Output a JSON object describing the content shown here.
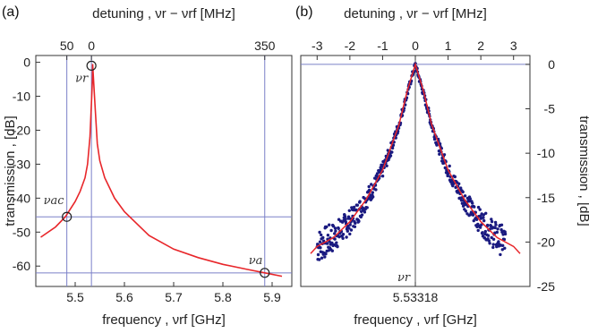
{
  "colors": {
    "fit": "#e8262a",
    "data": "#1a1a80",
    "guide": "#7b80c8",
    "axis": "#333333"
  },
  "panels": [
    {
      "tag": "(a)",
      "xlabel": "frequency , νrf [GHz]",
      "ylabel": "transmission , [dB]",
      "top_label": "detuning , νr − νrf [MHz]",
      "x_ticks": [
        "5.5",
        "5.6",
        "5.7",
        "5.8",
        "5.9"
      ],
      "y_ticks": [
        "0",
        "-10",
        "-20",
        "-30",
        "-40",
        "-50",
        "-60"
      ],
      "top_ticks": [
        "50",
        "0",
        "350"
      ],
      "markers": [
        "νr",
        "νac",
        "νa"
      ]
    },
    {
      "tag": "(b)",
      "xlabel": "frequency , νrf [GHz]",
      "ylabel": "transmission , [dB]",
      "top_label": "detuning , νr − νrf [MHz]",
      "x_ticks": [
        "5.53318"
      ],
      "y_ticks": [
        "0",
        "-5",
        "-10",
        "-15",
        "-20",
        "-25"
      ],
      "top_ticks": [
        "-3",
        "-2",
        "-1",
        "0",
        "1",
        "2",
        "3"
      ],
      "markers": [
        "νr"
      ]
    }
  ],
  "chart_data": [
    {
      "type": "line",
      "title": "",
      "xlabel": "frequency , νrf [GHz]",
      "ylabel": "transmission , [dB]",
      "xlim": [
        5.42,
        5.94
      ],
      "ylim": [
        -66,
        2
      ],
      "grid": false,
      "series": [
        {
          "x": [
            5.43,
            5.46,
            5.48,
            5.5,
            5.51,
            5.52,
            5.525,
            5.53,
            5.535,
            5.5355,
            5.54,
            5.545,
            5.55,
            5.56,
            5.58,
            5.6,
            5.65,
            5.7,
            5.75,
            5.8,
            5.85,
            5.885,
            5.92
          ],
          "y": [
            -51.5,
            -48.5,
            -45.5,
            -41,
            -38,
            -34,
            -30,
            -22,
            -5,
            -0.5,
            -12,
            -24,
            -29,
            -34,
            -40,
            -44,
            -51,
            -55,
            -57.5,
            -59.5,
            -61,
            -62,
            -63
          ]
        }
      ],
      "markers": [
        {
          "label": "νr",
          "x": 5.533,
          "y": -1
        },
        {
          "label": "νac",
          "x": 5.483,
          "y": -45.5
        },
        {
          "label": "νa",
          "x": 5.885,
          "y": -62
        }
      ],
      "guides": {
        "vertical": [
          5.483,
          5.533,
          5.885
        ],
        "horizontal": [
          -45.5,
          -62
        ]
      },
      "top_axis": {
        "label": "detuning , νr − νrf [MHz]",
        "ticks": [
          {
            "label": "50",
            "x": 5.483
          },
          {
            "label": "0",
            "x": 5.533
          },
          {
            "label": "350",
            "x": 5.885
          }
        ]
      }
    },
    {
      "type": "scatter",
      "title": "",
      "xlabel": "frequency , νrf [GHz]",
      "ylabel": "transmission , [dB]",
      "xlim": [
        -3.5,
        3.5
      ],
      "ylim": [
        -25,
        1
      ],
      "grid": false,
      "x_units": "detuning [MHz]",
      "center_tick": {
        "label": "5.53318",
        "x": 0
      },
      "series": [
        {
          "name": "data",
          "x": [
            -3.0,
            -2.75,
            -2.5,
            -2.25,
            -2.0,
            -1.75,
            -1.5,
            -1.25,
            -1.0,
            -0.75,
            -0.5,
            -0.3,
            -0.15,
            0.0,
            0.15,
            0.3,
            0.5,
            0.75,
            1.0,
            1.25,
            1.5,
            1.75,
            2.0,
            2.25,
            2.5,
            2.75
          ],
          "y": [
            -20.5,
            -20.0,
            -19.5,
            -18.6,
            -17.7,
            -16.6,
            -15.2,
            -13.7,
            -11.9,
            -9.6,
            -6.8,
            -4.0,
            -2.0,
            0.0,
            -2.0,
            -4.0,
            -6.8,
            -9.6,
            -11.9,
            -13.7,
            -15.2,
            -16.6,
            -17.7,
            -18.6,
            -19.5,
            -20.0
          ]
        },
        {
          "name": "fit",
          "x": [
            -3.2,
            -3.0,
            -2.5,
            -2.0,
            -1.5,
            -1.0,
            -0.5,
            -0.25,
            0.0,
            0.25,
            0.5,
            1.0,
            1.5,
            2.0,
            2.5,
            3.0,
            3.2
          ],
          "y": [
            -21.3,
            -20.5,
            -19.5,
            -17.7,
            -15.2,
            -11.9,
            -6.8,
            -3.0,
            0.0,
            -3.0,
            -6.8,
            -11.9,
            -15.2,
            -17.7,
            -19.5,
            -20.5,
            -21.3
          ]
        }
      ],
      "markers": [
        {
          "label": "νr",
          "x": 0,
          "y": -24
        }
      ],
      "guides": {
        "vertical": [
          0
        ],
        "horizontal": [
          0
        ]
      },
      "top_axis": {
        "label": "detuning , νr − νrf [MHz]",
        "ticks": [
          {
            "label": "-3",
            "x": -3
          },
          {
            "label": "-2",
            "x": -2
          },
          {
            "label": "-1",
            "x": -1
          },
          {
            "label": "0",
            "x": 0
          },
          {
            "label": "1",
            "x": 1
          },
          {
            "label": "2",
            "x": 2
          },
          {
            "label": "3",
            "x": 3
          }
        ]
      }
    }
  ]
}
